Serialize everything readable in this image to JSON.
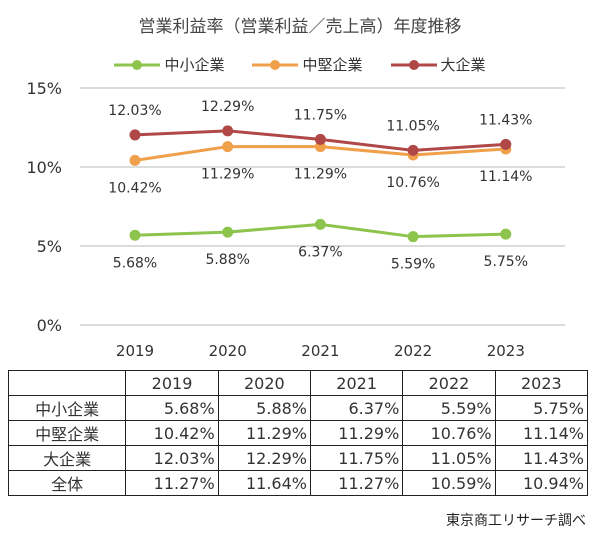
{
  "chart_data": {
    "type": "line",
    "title": "営業利益率（営業利益／売上高）年度推移",
    "categories": [
      "2019",
      "2020",
      "2021",
      "2022",
      "2023"
    ],
    "ylim": [
      0,
      15
    ],
    "yticks": [
      "0%",
      "5%",
      "10%",
      "15%"
    ],
    "ytick_values": [
      0,
      5,
      10,
      15
    ],
    "series": [
      {
        "name": "中小企業",
        "color": "#8dc44e",
        "values": [
          5.68,
          5.88,
          6.37,
          5.59,
          5.75
        ],
        "labels": [
          "5.68%",
          "5.88%",
          "6.37%",
          "5.59%",
          "5.75%"
        ],
        "label_pos": "below"
      },
      {
        "name": "中堅企業",
        "color": "#f0a04b",
        "values": [
          10.42,
          11.29,
          11.29,
          10.76,
          11.14
        ],
        "labels": [
          "10.42%",
          "11.29%",
          "11.29%",
          "10.76%",
          "11.14%"
        ],
        "label_pos": "below"
      },
      {
        "name": "大企業",
        "color": "#b04848",
        "values": [
          12.03,
          12.29,
          11.75,
          11.05,
          11.43
        ],
        "labels": [
          "12.03%",
          "12.29%",
          "11.75%",
          "11.05%",
          "11.43%"
        ],
        "label_pos": "above"
      }
    ],
    "legend": "top"
  },
  "table": {
    "header": [
      "",
      "2019",
      "2020",
      "2021",
      "2022",
      "2023"
    ],
    "rows": [
      [
        "中小企業",
        "5.68%",
        "5.88%",
        "6.37%",
        "5.59%",
        "5.75%"
      ],
      [
        "中堅企業",
        "10.42%",
        "11.29%",
        "11.29%",
        "10.76%",
        "11.14%"
      ],
      [
        "大企業",
        "12.03%",
        "12.29%",
        "11.75%",
        "11.05%",
        "11.43%"
      ],
      [
        "全体",
        "11.27%",
        "11.64%",
        "11.27%",
        "10.59%",
        "10.94%"
      ]
    ]
  },
  "source": "東京商工リサーチ調べ"
}
